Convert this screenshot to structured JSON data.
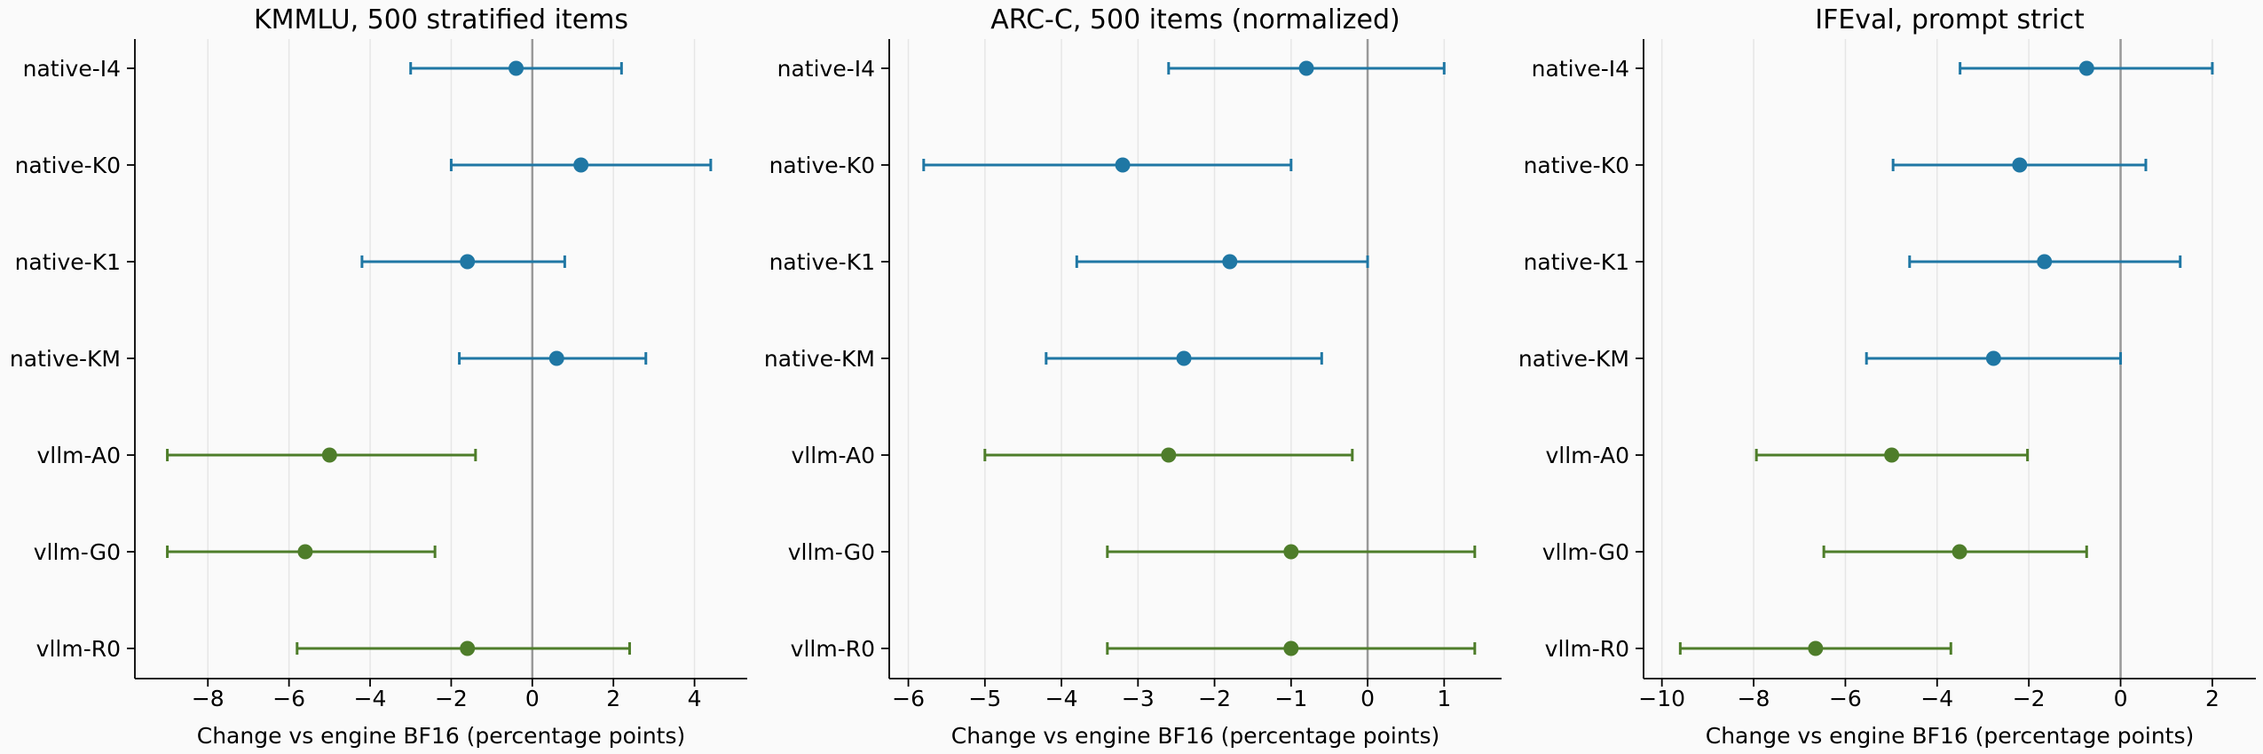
{
  "colors": {
    "native": "#1f77a4",
    "vllm": "#4e7d2a",
    "zero_line": "#999999",
    "grid": "#e6e6e6",
    "axis": "#000000",
    "background": "#fafafa"
  },
  "chart_data": [
    {
      "type": "scatter",
      "title": "KMMLU, 500 stratified items",
      "xlabel": "Change vs engine BF16 (percentage points)",
      "xlim": [
        -9.8,
        5.3
      ],
      "xticks": [
        -8,
        -6,
        -4,
        -2,
        0,
        2,
        4
      ],
      "xtick_labels": [
        "−8",
        "−6",
        "−4",
        "−2",
        "0",
        "2",
        "4"
      ],
      "grid": "vertical",
      "points": [
        {
          "label": "native-I4",
          "group": "native",
          "value": -0.4,
          "ci": [
            -3.0,
            2.2
          ]
        },
        {
          "label": "native-K0",
          "group": "native",
          "value": 1.2,
          "ci": [
            -2.0,
            4.4
          ]
        },
        {
          "label": "native-K1",
          "group": "native",
          "value": -1.6,
          "ci": [
            -4.2,
            0.8
          ]
        },
        {
          "label": "native-KM",
          "group": "native",
          "value": 0.6,
          "ci": [
            -1.8,
            2.8
          ]
        },
        {
          "label": "vllm-A0",
          "group": "vllm",
          "value": -5.0,
          "ci": [
            -9.0,
            -1.4
          ]
        },
        {
          "label": "vllm-G0",
          "group": "vllm",
          "value": -5.6,
          "ci": [
            -9.0,
            -2.4
          ]
        },
        {
          "label": "vllm-R0",
          "group": "vllm",
          "value": -1.6,
          "ci": [
            -5.8,
            2.4
          ]
        }
      ]
    },
    {
      "type": "scatter",
      "title": "ARC-C, 500 items (normalized)",
      "xlabel": "Change vs engine BF16 (percentage points)",
      "xlim": [
        -6.25,
        1.75
      ],
      "xticks": [
        -6,
        -5,
        -4,
        -3,
        -2,
        -1,
        0,
        1
      ],
      "xtick_labels": [
        "−6",
        "−5",
        "−4",
        "−3",
        "−2",
        "−1",
        "0",
        "1"
      ],
      "grid": "vertical",
      "points": [
        {
          "label": "native-I4",
          "group": "native",
          "value": -0.8,
          "ci": [
            -2.6,
            1.0
          ]
        },
        {
          "label": "native-K0",
          "group": "native",
          "value": -3.2,
          "ci": [
            -5.8,
            -1.0
          ]
        },
        {
          "label": "native-K1",
          "group": "native",
          "value": -1.8,
          "ci": [
            -3.8,
            0.0
          ]
        },
        {
          "label": "native-KM",
          "group": "native",
          "value": -2.4,
          "ci": [
            -4.2,
            -0.6
          ]
        },
        {
          "label": "vllm-A0",
          "group": "vllm",
          "value": -2.6,
          "ci": [
            -5.0,
            -0.2
          ]
        },
        {
          "label": "vllm-G0",
          "group": "vllm",
          "value": -1.0,
          "ci": [
            -3.4,
            1.4
          ]
        },
        {
          "label": "vllm-R0",
          "group": "vllm",
          "value": -1.0,
          "ci": [
            -3.4,
            1.4
          ]
        }
      ]
    },
    {
      "type": "scatter",
      "title": "IFEval, prompt strict",
      "xlabel": "Change vs engine BF16 (percentage points)",
      "xlim": [
        -10.4,
        2.95
      ],
      "xticks": [
        -10,
        -8,
        -6,
        -4,
        -2,
        0,
        2
      ],
      "xtick_labels": [
        "−10",
        "−8",
        "−6",
        "−4",
        "−2",
        "0",
        "2"
      ],
      "grid": "vertical",
      "points": [
        {
          "label": "native-I4",
          "group": "native",
          "value": -0.74,
          "ci": [
            -3.5,
            2.0
          ]
        },
        {
          "label": "native-K0",
          "group": "native",
          "value": -2.2,
          "ci": [
            -4.96,
            0.55
          ]
        },
        {
          "label": "native-K1",
          "group": "native",
          "value": -1.66,
          "ci": [
            -4.6,
            1.3
          ]
        },
        {
          "label": "native-KM",
          "group": "native",
          "value": -2.77,
          "ci": [
            -5.54,
            0.0
          ]
        },
        {
          "label": "vllm-A0",
          "group": "vllm",
          "value": -4.99,
          "ci": [
            -7.94,
            -2.03
          ]
        },
        {
          "label": "vllm-G0",
          "group": "vllm",
          "value": -3.51,
          "ci": [
            -6.47,
            -0.74
          ]
        },
        {
          "label": "vllm-R0",
          "group": "vllm",
          "value": -6.65,
          "ci": [
            -9.6,
            -3.7
          ]
        }
      ]
    }
  ]
}
